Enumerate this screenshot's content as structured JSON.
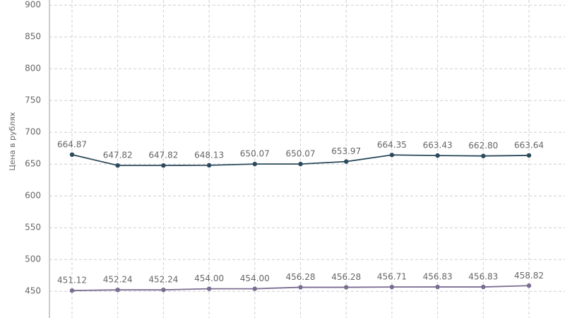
{
  "chart_data": {
    "type": "line",
    "y_label": "Цена в рублях",
    "categories": [
      null,
      null,
      null,
      null,
      null,
      null,
      null,
      null,
      null,
      null,
      null
    ],
    "series": [
      {
        "name": null,
        "color": "#2c4a5c",
        "values": [
          664.87,
          647.82,
          647.82,
          648.13,
          650.07,
          650.07,
          653.97,
          664.35,
          663.43,
          662.8,
          663.64
        ],
        "value_labels": [
          "664.87",
          "647.82",
          "647.82",
          "648.13",
          "650.07",
          "650.07",
          "653.97",
          "664.35",
          "663.43",
          "662.80",
          "663.64"
        ]
      },
      {
        "name": null,
        "color": "#7b6d92",
        "values": [
          451.12,
          452.24,
          452.24,
          454.0,
          454.0,
          456.28,
          456.28,
          456.71,
          456.83,
          456.83,
          458.82
        ],
        "value_labels": [
          "451.12",
          "452.24",
          "452.24",
          "454.00",
          "454.00",
          "456.28",
          "456.28",
          "456.71",
          "456.83",
          "456.83",
          "458.82"
        ]
      }
    ],
    "ylim": [
      408,
      908
    ],
    "yticks": [
      450,
      500,
      550,
      600,
      650,
      700,
      750,
      800,
      850,
      900
    ],
    "grid": true
  }
}
